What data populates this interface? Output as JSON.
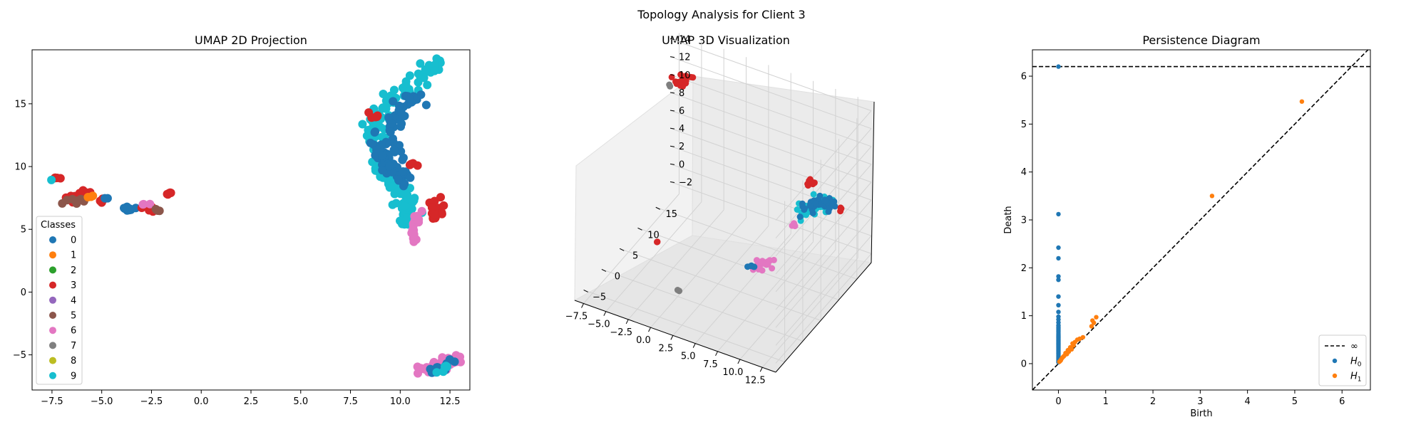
{
  "figure": {
    "title": "Topology Analysis for Client 3"
  },
  "colors": {
    "0": "#1f77b4",
    "1": "#ff7f0e",
    "2": "#2ca02c",
    "3": "#d62728",
    "4": "#9467bd",
    "5": "#8c564b",
    "6": "#e377c2",
    "7": "#7f7f7f",
    "8": "#bcbd22",
    "9": "#17becf"
  },
  "chart_data": [
    {
      "type": "scatter",
      "title": "UMAP 2D Projection",
      "xlim": [
        -8.5,
        13.5
      ],
      "ylim": [
        -7.8,
        19.3
      ],
      "xticks": [
        -7.5,
        -5.0,
        -2.5,
        0.0,
        2.5,
        5.0,
        7.5,
        10.0,
        12.5
      ],
      "xtick_labels": [
        "−7.5",
        "−5.0",
        "−2.5",
        "0.0",
        "2.5",
        "5.0",
        "7.5",
        "10.0",
        "12.5"
      ],
      "yticks": [
        -5,
        0,
        5,
        10,
        15
      ],
      "ytick_labels": [
        "−5",
        "0",
        "5",
        "10",
        "15"
      ],
      "legend": {
        "title": "Classes",
        "placement": "lower-left",
        "entries": [
          "0",
          "1",
          "2",
          "3",
          "4",
          "5",
          "6",
          "7",
          "8",
          "9"
        ]
      },
      "clusters": [
        {
          "class": "9",
          "path": [
            [
              11.8,
              18.2
            ],
            [
              11.2,
              17.2
            ],
            [
              10.5,
              16.3
            ],
            [
              9.6,
              15.4
            ],
            [
              8.9,
              14.2
            ],
            [
              8.7,
              12.8
            ],
            [
              8.8,
              11.4
            ],
            [
              9.0,
              10.2
            ],
            [
              9.5,
              9.0
            ],
            [
              10.0,
              8.0
            ],
            [
              10.3,
              7.0
            ],
            [
              10.4,
              6.0
            ],
            [
              10.6,
              5.2
            ]
          ],
          "spread": 0.28,
          "count": 170
        },
        {
          "class": "0",
          "path": [
            [
              11.0,
              15.6
            ],
            [
              10.2,
              15.0
            ],
            [
              9.8,
              13.8
            ],
            [
              9.5,
              12.4
            ],
            [
              9.7,
              11.0
            ],
            [
              10.0,
              9.6
            ],
            [
              10.2,
              8.4
            ]
          ],
          "spread": 0.25,
          "count": 70
        },
        {
          "class": "0",
          "path": [
            [
              8.7,
              12.6
            ],
            [
              8.9,
              11.2
            ],
            [
              9.4,
              10.0
            ],
            [
              9.9,
              9.2
            ]
          ],
          "spread": 0.2,
          "count": 30
        },
        {
          "class": "3",
          "path": [
            [
              11.8,
              7.2
            ],
            [
              11.9,
              6.4
            ],
            [
              11.6,
              6.0
            ]
          ],
          "spread": 0.18,
          "count": 25
        },
        {
          "class": "3",
          "path": [
            [
              8.5,
              14.2
            ],
            [
              8.8,
              14.0
            ]
          ],
          "spread": 0.12,
          "count": 5
        },
        {
          "class": "3",
          "path": [
            [
              10.5,
              10.2
            ],
            [
              10.8,
              10.0
            ]
          ],
          "spread": 0.1,
          "count": 4
        },
        {
          "class": "6",
          "path": [
            [
              10.9,
              6.5
            ],
            [
              10.7,
              5.2
            ],
            [
              10.6,
              3.9
            ]
          ],
          "spread": 0.14,
          "count": 22
        },
        {
          "class": "6",
          "path": [
            [
              11.1,
              -6.1
            ],
            [
              11.8,
              -6.0
            ],
            [
              12.5,
              -5.6
            ],
            [
              12.9,
              -5.2
            ]
          ],
          "spread": 0.2,
          "count": 65
        },
        {
          "class": "0",
          "path": [
            [
              11.7,
              -6.2
            ],
            [
              12.2,
              -6.0
            ],
            [
              12.6,
              -5.3
            ]
          ],
          "spread": 0.14,
          "count": 14
        },
        {
          "class": "9",
          "path": [
            [
              11.9,
              -6.3
            ],
            [
              12.3,
              -5.9
            ]
          ],
          "spread": 0.1,
          "count": 6
        },
        {
          "class": "3",
          "path": [
            [
              -7.4,
              9.0
            ],
            [
              -7.2,
              9.1
            ]
          ],
          "spread": 0.06,
          "count": 5
        },
        {
          "class": "9",
          "path": [
            [
              -7.55,
              8.9
            ]
          ],
          "spread": 0.03,
          "count": 1
        },
        {
          "class": "3",
          "path": [
            [
              -6.6,
              7.4
            ],
            [
              -6.1,
              8.0
            ],
            [
              -5.5,
              7.9
            ]
          ],
          "spread": 0.15,
          "count": 16
        },
        {
          "class": "5",
          "path": [
            [
              -6.8,
              7.1
            ],
            [
              -5.9,
              7.3
            ],
            [
              -5.3,
              7.6
            ]
          ],
          "spread": 0.12,
          "count": 8
        },
        {
          "class": "1",
          "path": [
            [
              -5.7,
              7.8
            ],
            [
              -5.4,
              7.4
            ]
          ],
          "spread": 0.06,
          "count": 3
        },
        {
          "class": "3",
          "path": [
            [
              -5.1,
              7.1
            ],
            [
              -4.9,
              7.3
            ]
          ],
          "spread": 0.06,
          "count": 4
        },
        {
          "class": "0",
          "path": [
            [
              -4.8,
              7.5
            ]
          ],
          "spread": 0.05,
          "count": 2
        },
        {
          "class": "0",
          "path": [
            [
              -3.9,
              6.7
            ],
            [
              -3.4,
              6.6
            ]
          ],
          "spread": 0.08,
          "count": 8
        },
        {
          "class": "3",
          "path": [
            [
              -3.4,
              6.6
            ],
            [
              -2.8,
              6.8
            ],
            [
              -2.2,
              6.6
            ]
          ],
          "spread": 0.1,
          "count": 12
        },
        {
          "class": "6",
          "path": [
            [
              -3.0,
              7.0
            ],
            [
              -2.6,
              7.0
            ]
          ],
          "spread": 0.05,
          "count": 3
        },
        {
          "class": "5",
          "path": [
            [
              -2.3,
              6.6
            ],
            [
              -1.9,
              6.4
            ]
          ],
          "spread": 0.05,
          "count": 4
        },
        {
          "class": "3",
          "path": [
            [
              -1.8,
              7.7
            ],
            [
              -1.6,
              7.9
            ]
          ],
          "spread": 0.06,
          "count": 5
        }
      ]
    },
    {
      "type": "scatter3d",
      "title": "UMAP 3D Visualization",
      "xticks": [
        -7.5,
        -5.0,
        -2.5,
        0.0,
        2.5,
        5.0,
        7.5,
        10.0,
        12.5
      ],
      "xtick_labels": [
        "−7.5",
        "−5.0",
        "−2.5",
        "0.0",
        "2.5",
        "5.0",
        "7.5",
        "10.0",
        "12.5"
      ],
      "yticks": [
        -5,
        0,
        5,
        10,
        15
      ],
      "ytick_labels": [
        "−5",
        "0",
        "5",
        "10",
        "15"
      ],
      "zticks": [
        -2,
        0,
        2,
        4,
        6,
        8,
        10,
        12,
        14
      ],
      "ztick_labels": [
        "−2",
        "0",
        "2",
        "4",
        "6",
        "8",
        "10",
        "12",
        "14"
      ],
      "clusters": [
        {
          "class": "3",
          "path": [
            [
              -7.0,
              16.0,
              11.0
            ],
            [
              -6.0,
              16.0,
              11.6
            ],
            [
              -5.0,
              16.0,
              12.2
            ]
          ],
          "spread": 0.3,
          "count": 22
        },
        {
          "class": "7",
          "path": [
            [
              -7.4,
              16.0,
              10.6
            ]
          ],
          "spread": 0.1,
          "count": 2
        },
        {
          "class": "3",
          "path": [
            [
              -3.0,
              2.0,
              1.0
            ]
          ],
          "spread": 0.1,
          "count": 2
        },
        {
          "class": "7",
          "path": [
            [
              1.0,
              -2.0,
              -1.0
            ]
          ],
          "spread": 0.1,
          "count": 2
        },
        {
          "class": "6",
          "path": [
            [
              8.0,
              2.0,
              2.6
            ],
            [
              9.5,
              2.5,
              2.8
            ]
          ],
          "spread": 0.3,
          "count": 20
        },
        {
          "class": "0",
          "path": [
            [
              7.6,
              2.0,
              2.3
            ]
          ],
          "spread": 0.15,
          "count": 5
        },
        {
          "class": "9",
          "path": [
            [
              9.5,
              10.0,
              4.8
            ],
            [
              10.8,
              11.0,
              6.0
            ],
            [
              12.0,
              12.0,
              6.4
            ]
          ],
          "spread": 0.4,
          "count": 45
        },
        {
          "class": "0",
          "path": [
            [
              10.0,
              10.5,
              5.5
            ],
            [
              11.2,
              11.5,
              6.2
            ],
            [
              12.5,
              12.5,
              6.0
            ]
          ],
          "spread": 0.35,
          "count": 40
        },
        {
          "class": "3",
          "path": [
            [
              10.3,
              11.0,
              7.8
            ],
            [
              10.6,
              11.2,
              8.4
            ]
          ],
          "spread": 0.2,
          "count": 10
        },
        {
          "class": "3",
          "path": [
            [
              13.2,
              12.8,
              5.6
            ]
          ],
          "spread": 0.1,
          "count": 3
        },
        {
          "class": "6",
          "path": [
            [
              9.2,
              9.5,
              4.0
            ]
          ],
          "spread": 0.15,
          "count": 4
        }
      ]
    },
    {
      "type": "scatter",
      "title": "Persistence Diagram",
      "xlabel": "Birth",
      "ylabel": "Death",
      "xlim": [
        -0.55,
        6.6
      ],
      "ylim": [
        -0.55,
        6.55
      ],
      "xticks": [
        0,
        1,
        2,
        3,
        4,
        5,
        6
      ],
      "yticks": [
        0,
        1,
        2,
        3,
        4,
        5,
        6
      ],
      "infinity_level": 6.2,
      "legend": {
        "placement": "lower-right",
        "entries": [
          {
            "kind": "line",
            "label": "∞"
          },
          {
            "kind": "point",
            "label": "H",
            "sub": "0",
            "color": "#1f77b4"
          },
          {
            "kind": "point",
            "label": "H",
            "sub": "1",
            "color": "#ff7f0e"
          }
        ]
      },
      "series": [
        {
          "name": "H0",
          "color": "#1f77b4",
          "points": [
            [
              0,
              6.2
            ],
            [
              0,
              3.12
            ],
            [
              0,
              2.42
            ],
            [
              0,
              2.2
            ],
            [
              0,
              1.82
            ],
            [
              0,
              1.75
            ],
            [
              0,
              1.4
            ],
            [
              0,
              1.22
            ],
            [
              0,
              1.08
            ],
            [
              0,
              0.98
            ],
            [
              0,
              0.92
            ],
            [
              0,
              0.86
            ],
            [
              0,
              0.8
            ],
            [
              0,
              0.76
            ],
            [
              0,
              0.72
            ],
            [
              0,
              0.68
            ],
            [
              0,
              0.64
            ],
            [
              0,
              0.6
            ],
            [
              0,
              0.57
            ],
            [
              0,
              0.54
            ],
            [
              0,
              0.51
            ],
            [
              0,
              0.48
            ],
            [
              0,
              0.45
            ],
            [
              0,
              0.42
            ],
            [
              0,
              0.39
            ],
            [
              0,
              0.36
            ],
            [
              0,
              0.33
            ],
            [
              0,
              0.3
            ],
            [
              0,
              0.27
            ],
            [
              0,
              0.24
            ],
            [
              0,
              0.21
            ],
            [
              0,
              0.18
            ],
            [
              0,
              0.15
            ],
            [
              0,
              0.12
            ],
            [
              0,
              0.09
            ],
            [
              0,
              0.06
            ],
            [
              0,
              0.03
            ]
          ]
        },
        {
          "name": "H1",
          "color": "#ff7f0e",
          "points": [
            [
              5.15,
              5.47
            ],
            [
              3.25,
              3.5
            ],
            [
              0.8,
              0.97
            ],
            [
              0.72,
              0.9
            ],
            [
              0.75,
              0.85
            ],
            [
              0.7,
              0.78
            ],
            [
              0.52,
              0.55
            ],
            [
              0.45,
              0.52
            ],
            [
              0.4,
              0.5
            ],
            [
              0.35,
              0.45
            ],
            [
              0.3,
              0.42
            ],
            [
              0.32,
              0.38
            ],
            [
              0.25,
              0.34
            ],
            [
              0.28,
              0.3
            ],
            [
              0.2,
              0.28
            ],
            [
              0.22,
              0.25
            ],
            [
              0.15,
              0.22
            ],
            [
              0.18,
              0.2
            ],
            [
              0.12,
              0.16
            ],
            [
              0.1,
              0.14
            ],
            [
              0.08,
              0.12
            ],
            [
              0.06,
              0.09
            ],
            [
              0.05,
              0.07
            ],
            [
              0.04,
              0.06
            ],
            [
              0.03,
              0.05
            ],
            [
              0.02,
              0.04
            ]
          ]
        }
      ]
    }
  ]
}
